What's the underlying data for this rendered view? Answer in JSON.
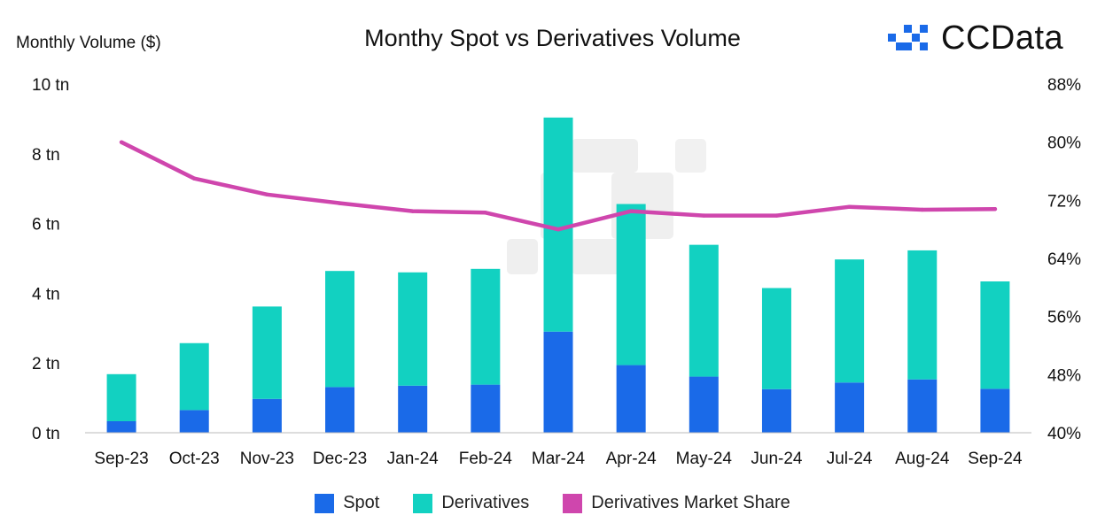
{
  "header": {
    "y_unit_label": "Monthly Volume ($)",
    "brand_name": "CCData"
  },
  "colors": {
    "spot": "#1A6AE8",
    "derivatives": "#12D1C1",
    "share": "#CF46AD",
    "axis": "#BBBBBB",
    "logo": "#1A6AE8"
  },
  "chart_data": {
    "type": "bar",
    "stacked": true,
    "title": "Monthy Spot vs Derivatives Volume",
    "ylabel": "Monthly Volume ($)",
    "categories": [
      "Sep-23",
      "Oct-23",
      "Nov-23",
      "Dec-23",
      "Jan-24",
      "Feb-24",
      "Mar-24",
      "Apr-24",
      "May-24",
      "Jun-24",
      "Jul-24",
      "Aug-24",
      "Sep-24"
    ],
    "series": [
      {
        "name": "Spot",
        "type": "bar",
        "axis": "left",
        "unit": "tn",
        "values": [
          0.33,
          0.65,
          0.97,
          1.31,
          1.35,
          1.38,
          2.9,
          1.94,
          1.61,
          1.25,
          1.44,
          1.53,
          1.26
        ]
      },
      {
        "name": "Derivatives",
        "type": "bar",
        "axis": "left",
        "unit": "tn",
        "values": [
          1.35,
          1.92,
          2.65,
          3.33,
          3.25,
          3.32,
          6.14,
          4.62,
          3.78,
          2.9,
          3.53,
          3.7,
          3.08
        ]
      },
      {
        "name": "Derivatives Market Share",
        "type": "line",
        "axis": "right",
        "unit": "%",
        "values": [
          80.0,
          75.0,
          72.8,
          71.6,
          70.5,
          70.3,
          68.0,
          70.5,
          69.9,
          69.9,
          71.1,
          70.7,
          70.8
        ]
      }
    ],
    "y_left": {
      "min": 0,
      "max": 10,
      "ticks": [
        0,
        2,
        4,
        6,
        8,
        10
      ],
      "tick_labels": [
        "0 tn",
        "2 tn",
        "4 tn",
        "6 tn",
        "8 tn",
        "10 tn"
      ]
    },
    "y_right": {
      "min": 40,
      "max": 88,
      "ticks": [
        40,
        48,
        56,
        64,
        72,
        80,
        88
      ],
      "tick_labels": [
        "40%",
        "48%",
        "56%",
        "64%",
        "72%",
        "80%",
        "88%"
      ]
    },
    "grid": false,
    "legend_position": "bottom"
  }
}
